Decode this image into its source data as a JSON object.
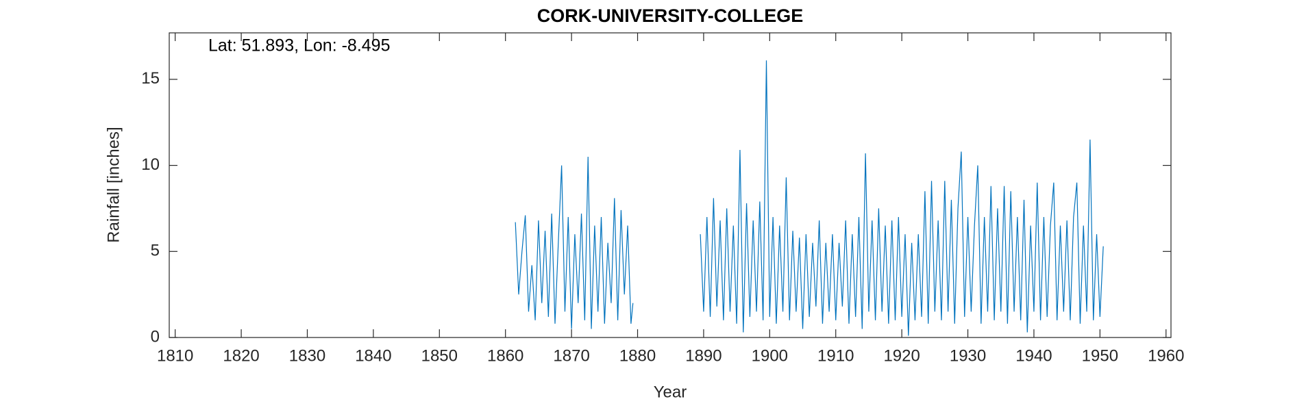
{
  "chart_data": {
    "type": "line",
    "title": "CORK-UNIVERSITY-COLLEGE",
    "annotation": "Lat: 51.893, Lon: -8.495",
    "x_label": "Year",
    "y_label": "Rainfall [inches]",
    "xlim": [
      1809.1,
      1960.75
    ],
    "ylim": [
      0,
      17.7
    ],
    "xticks": [
      1810,
      1820,
      1830,
      1840,
      1850,
      1860,
      1870,
      1880,
      1890,
      1900,
      1910,
      1920,
      1930,
      1940,
      1950,
      1960
    ],
    "yticks": [
      0,
      5,
      10,
      15
    ],
    "x": [
      1861.5,
      1862,
      1862.5,
      1863,
      1863.5,
      1864,
      1864.5,
      1865,
      1865.5,
      1866,
      1866.5,
      1867,
      1867.5,
      1868,
      1868.5,
      1869,
      1869.5,
      1870,
      1870.5,
      1871,
      1871.5,
      1872,
      1872.5,
      1873,
      1873.5,
      1874,
      1874.5,
      1875,
      1875.5,
      1876,
      1876.5,
      1877,
      1877.5,
      1878,
      1878.5,
      1879,
      1879.3,
      1884,
      1889.5,
      1890,
      1890.5,
      1891,
      1891.5,
      1892,
      1892.5,
      1893,
      1893.5,
      1894,
      1894.5,
      1895,
      1895.5,
      1896,
      1896.5,
      1897,
      1897.5,
      1898,
      1898.5,
      1899,
      1899.5,
      1900,
      1900.5,
      1901,
      1901.5,
      1902,
      1902.5,
      1903,
      1903.5,
      1904,
      1904.5,
      1905,
      1905.5,
      1906,
      1906.5,
      1907,
      1907.5,
      1908,
      1908.5,
      1909,
      1909.5,
      1910,
      1910.5,
      1911,
      1911.5,
      1912,
      1912.5,
      1913,
      1913.5,
      1914,
      1914.5,
      1915,
      1915.5,
      1916,
      1916.5,
      1917,
      1917.5,
      1918,
      1918.5,
      1919,
      1919.5,
      1920,
      1920.5,
      1921,
      1921.5,
      1922,
      1922.5,
      1923,
      1923.5,
      1924,
      1924.5,
      1925,
      1925.5,
      1926,
      1926.5,
      1927,
      1927.5,
      1928,
      1928.5,
      1929,
      1929.5,
      1930,
      1930.5,
      1931,
      1931.5,
      1932,
      1932.5,
      1933,
      1933.5,
      1934,
      1934.5,
      1935,
      1935.5,
      1936,
      1936.5,
      1937,
      1937.5,
      1938,
      1938.5,
      1939,
      1939.5,
      1940,
      1940.5,
      1941,
      1941.5,
      1942,
      1942.5,
      1943,
      1943.5,
      1944,
      1944.5,
      1945,
      1945.5,
      1946,
      1946.5,
      1947,
      1947.5,
      1948,
      1948.5,
      1949,
      1949.5,
      1950,
      1950.5
    ],
    "series": [
      {
        "color": "#0072bd",
        "values": [
          6.7,
          2.5,
          5.0,
          7.1,
          1.5,
          4.2,
          1.0,
          6.8,
          2.0,
          6.2,
          1.2,
          7.2,
          0.8,
          5.5,
          10.0,
          1.5,
          7.0,
          0.5,
          6.0,
          2.0,
          7.2,
          1.0,
          10.5,
          0.5,
          6.5,
          1.5,
          7.0,
          0.8,
          5.5,
          2.0,
          8.1,
          1.0,
          7.4,
          2.5,
          6.5,
          0.8,
          2.0,
          null,
          6.0,
          1.5,
          7.0,
          1.2,
          8.1,
          1.8,
          6.8,
          1.0,
          7.5,
          1.5,
          6.5,
          0.8,
          10.9,
          0.3,
          7.8,
          1.2,
          6.8,
          1.5,
          7.9,
          1.0,
          16.1,
          1.2,
          7.0,
          0.8,
          6.5,
          1.5,
          9.3,
          1.0,
          6.2,
          1.5,
          5.8,
          0.5,
          6.0,
          1.2,
          5.5,
          1.8,
          6.8,
          0.8,
          5.5,
          1.5,
          6.0,
          1.0,
          5.5,
          1.8,
          6.8,
          0.8,
          6.0,
          1.2,
          7.0,
          0.5,
          10.7,
          1.5,
          6.8,
          1.0,
          7.5,
          1.5,
          6.5,
          0.8,
          6.8,
          1.0,
          7.0,
          1.2,
          6.0,
          0.1,
          5.5,
          1.0,
          6.0,
          1.2,
          8.5,
          0.8,
          9.1,
          1.5,
          6.8,
          1.0,
          9.1,
          1.5,
          8.0,
          0.8,
          7.5,
          10.8,
          1.2,
          7.0,
          1.5,
          6.5,
          10.0,
          0.8,
          7.0,
          1.5,
          8.8,
          1.0,
          7.5,
          1.5,
          8.8,
          0.8,
          8.5,
          1.5,
          7.0,
          1.0,
          8.0,
          0.3,
          6.5,
          1.5,
          9.0,
          1.0,
          7.0,
          1.2,
          6.5,
          9.0,
          1.0,
          6.5,
          1.5,
          6.8,
          1.0,
          7.0,
          9.0,
          0.8,
          6.5,
          1.5,
          11.5,
          1.0,
          6.0,
          1.2,
          5.3
        ]
      }
    ]
  }
}
